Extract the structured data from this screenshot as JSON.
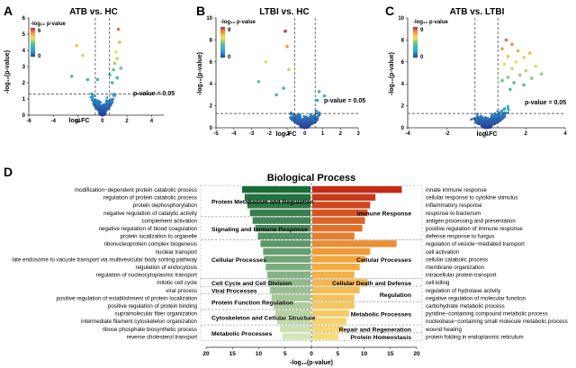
{
  "panels": [
    {
      "letter": "A",
      "title": "ATB vs. HC",
      "xticks": [
        "-6",
        "-4",
        "-2",
        "0",
        "2",
        "4"
      ],
      "yticks": [
        "0",
        "1",
        "2",
        "3",
        "4",
        "5",
        "6"
      ]
    },
    {
      "letter": "B",
      "title": "LTBI vs. HC",
      "xticks": [
        "-5",
        "-4",
        "-3",
        "-2",
        "-1",
        "0",
        "1",
        "2",
        "3"
      ],
      "yticks": [
        "0",
        "2",
        "4",
        "6",
        "8",
        "10"
      ]
    },
    {
      "letter": "C",
      "title": "ATB vs. LTBI",
      "xticks": [
        "-4",
        "-2",
        "0",
        "2",
        "4"
      ],
      "yticks": [
        "0",
        "2",
        "4",
        "6",
        "8",
        "10"
      ]
    }
  ],
  "colorbars": [
    {
      "title": "-log₁₀ p-value",
      "max_label": "6",
      "min_label": "0"
    },
    {
      "title": "-log₁₀ p-value",
      "max_label": "9",
      "min_label": "0"
    },
    {
      "title": "-log₁₀ p-value",
      "max_label": "9",
      "min_label": "0"
    }
  ],
  "volcano_common": {
    "xlabel": "log₂FC",
    "ylabel": "-log₁₀(p-value)",
    "threshold_label": "p-value = 0.05"
  },
  "colors": {
    "green_dark": "#1a6b3a",
    "green_light": "#d4e6b8",
    "red": "#c62a14",
    "orange": "#f2a33a",
    "yellow": "#f7dd7a"
  },
  "panel_d": {
    "letter": "D",
    "title": "Biological Process",
    "xlabel": "-log₁₀(p-value)",
    "xticks": [
      "20",
      "15",
      "10",
      "5",
      "0",
      "5",
      "10",
      "15",
      "20"
    ]
  },
  "chart_data": [
    {
      "type": "scatter",
      "panel": "A",
      "title": "ATB vs. HC",
      "xlabel": "log₂FC",
      "ylabel": "-log₁₀(p-value)",
      "xlim": [
        -6,
        5
      ],
      "ylim": [
        0,
        6
      ],
      "threshold_y": 1.3,
      "vlines": [
        -0.58,
        0.58
      ],
      "colorbar_max": 6,
      "points": [
        [
          -2.1,
          4.3
        ],
        [
          -1.6,
          3.7
        ],
        [
          -2.5,
          2.4
        ],
        [
          -1.2,
          2.2
        ],
        [
          1.3,
          5.3
        ],
        [
          1.4,
          4.5
        ],
        [
          1.1,
          3.9
        ],
        [
          1.2,
          3.5
        ],
        [
          1.0,
          3.2
        ],
        [
          0.9,
          2.8
        ],
        [
          1.5,
          2.9
        ],
        [
          1.2,
          2.3
        ],
        [
          -0.4,
          2.2
        ],
        [
          0.6,
          2.5
        ],
        [
          0.8,
          2.0
        ]
      ]
    },
    {
      "type": "scatter",
      "panel": "B",
      "title": "LTBI vs. HC",
      "xlabel": "log₂FC",
      "ylabel": "-log₁₀(p-value)",
      "xlim": [
        -5,
        3
      ],
      "ylim": [
        0,
        10
      ],
      "threshold_y": 1.3,
      "vlines": [
        -0.58,
        0.58
      ],
      "colorbar_max": 9,
      "points": [
        [
          -1.1,
          8.8
        ],
        [
          -1.0,
          7.4
        ],
        [
          -2.2,
          6.0
        ],
        [
          -0.9,
          5.3
        ],
        [
          -2.6,
          4.2
        ],
        [
          -1.2,
          3.6
        ],
        [
          0.8,
          3.3
        ],
        [
          1.1,
          2.9
        ],
        [
          0.7,
          2.5
        ],
        [
          -1.6,
          3.0
        ]
      ]
    },
    {
      "type": "scatter",
      "panel": "C",
      "title": "ATB vs. LTBI",
      "xlabel": "log₂FC",
      "ylabel": "-log₁₀(p-value)",
      "xlim": [
        -4,
        4
      ],
      "ylim": [
        0,
        10
      ],
      "threshold_y": 1.3,
      "vlines": [
        -0.58,
        0.58
      ],
      "colorbar_max": 9,
      "points": [
        [
          1.0,
          8.0
        ],
        [
          1.3,
          7.6
        ],
        [
          0.8,
          7.2
        ],
        [
          1.6,
          7.0
        ],
        [
          2.2,
          6.8
        ],
        [
          1.9,
          6.4
        ],
        [
          1.1,
          6.5
        ],
        [
          1.5,
          6.0
        ],
        [
          0.9,
          5.8
        ],
        [
          1.3,
          5.4
        ],
        [
          2.0,
          5.2
        ],
        [
          2.5,
          5.6
        ],
        [
          1.7,
          4.8
        ],
        [
          1.1,
          4.6
        ],
        [
          2.3,
          4.5
        ],
        [
          2.8,
          4.9
        ],
        [
          1.4,
          4.1
        ],
        [
          0.8,
          4.3
        ],
        [
          1.9,
          3.9
        ],
        [
          1.2,
          3.5
        ]
      ]
    },
    {
      "type": "bar",
      "panel": "D",
      "title": "Biological Process",
      "xlabel": "-log₁₀(p-value)",
      "xlim": [
        0,
        20
      ],
      "series": [
        {
          "side": "down",
          "categories": [
            "modification−dependent protein catabolic process",
            "regulation of protein catabolic process",
            "protein dephosphorylation",
            "negative regulation of catalytic activity",
            "complement activation",
            "negative regulation of blood coagulation",
            "protein localization to organelle",
            "ribonucleoprotein complex biogenesis",
            "nuclear transport",
            "late endosome to vacuole transport via multivesicular body sorting pathway",
            "regulation of endocytosis",
            "regulation of nucleocytoplasmic transport",
            "mitotic cell cycle",
            "viral process",
            "positive regulation of establishment of protein localization",
            "positive regulation of protein binding",
            "supramolecular fiber organization",
            "intermediate filament cytoskeleton organization",
            "ribose phosphate biosynthetic process",
            "reverse cholesterol transport"
          ],
          "values": [
            13,
            12.5,
            12,
            11.5,
            11,
            10.5,
            10,
            9.5,
            9,
            8.8,
            8.5,
            8.2,
            8,
            7.7,
            7.4,
            7,
            6.7,
            6.3,
            5.8,
            5.4
          ]
        },
        {
          "side": "up",
          "categories": [
            "innate immune response",
            "cellular response to cytokine stimulus",
            "inflammatory response",
            "response to bacterium",
            "antigen processing and presentation",
            "positive regulation of immune response",
            "defense response to fungus",
            "regulation of vesicle−mediated transport",
            "cell activation",
            "cellular catabolic process",
            "membrane organization",
            "intracellular protein transport",
            "cell killing",
            "regulation of hydrolase activity",
            "negative regulation of molecular function",
            "carbohydrate metabolic process",
            "pyridine−containing compound metabolic process",
            "nucleobase−containing small molecule metabolic process",
            "wound healing",
            "protein folding in endoplasmic reticulum"
          ],
          "values": [
            17,
            12,
            11,
            10.5,
            10,
            9.5,
            8,
            16,
            11,
            10,
            9,
            8,
            10.5,
            9,
            8,
            8,
            7,
            6.5,
            6,
            5
          ]
        }
      ],
      "groups": {
        "down": [
          {
            "label": "Protein Metabolism and Regulation",
            "rows": [
              0,
              3
            ]
          },
          {
            "label": "Signaling and Immune Response",
            "rows": [
              4,
              6
            ]
          },
          {
            "label": "Cellular Processes",
            "rows": [
              7,
              11
            ]
          },
          {
            "label": "Cell Cycle and Cell Division",
            "rows": [
              12,
              12
            ]
          },
          {
            "label": "Viral Processes",
            "rows": [
              13,
              13
            ]
          },
          {
            "label": "Protein Function Regulation",
            "rows": [
              14,
              15
            ]
          },
          {
            "label": "Cytoskeleton and Cellular Structure",
            "rows": [
              16,
              17
            ]
          },
          {
            "label": "Metabolic Processes",
            "rows": [
              18,
              19
            ]
          }
        ],
        "up": [
          {
            "label": "Immune Response",
            "rows": [
              0,
              6
            ]
          },
          {
            "label": "Cellular Processes",
            "rows": [
              7,
              11
            ]
          },
          {
            "label": "Cellular Death and Defense",
            "rows": [
              12,
              12
            ]
          },
          {
            "label": "Regulation",
            "rows": [
              13,
              14
            ]
          },
          {
            "label": "Metabolic Processes",
            "rows": [
              15,
              17
            ]
          },
          {
            "label": "Repair and Regeneration",
            "rows": [
              18,
              18
            ]
          },
          {
            "label": "Protein Homeostasis",
            "rows": [
              19,
              19
            ]
          }
        ]
      }
    }
  ]
}
